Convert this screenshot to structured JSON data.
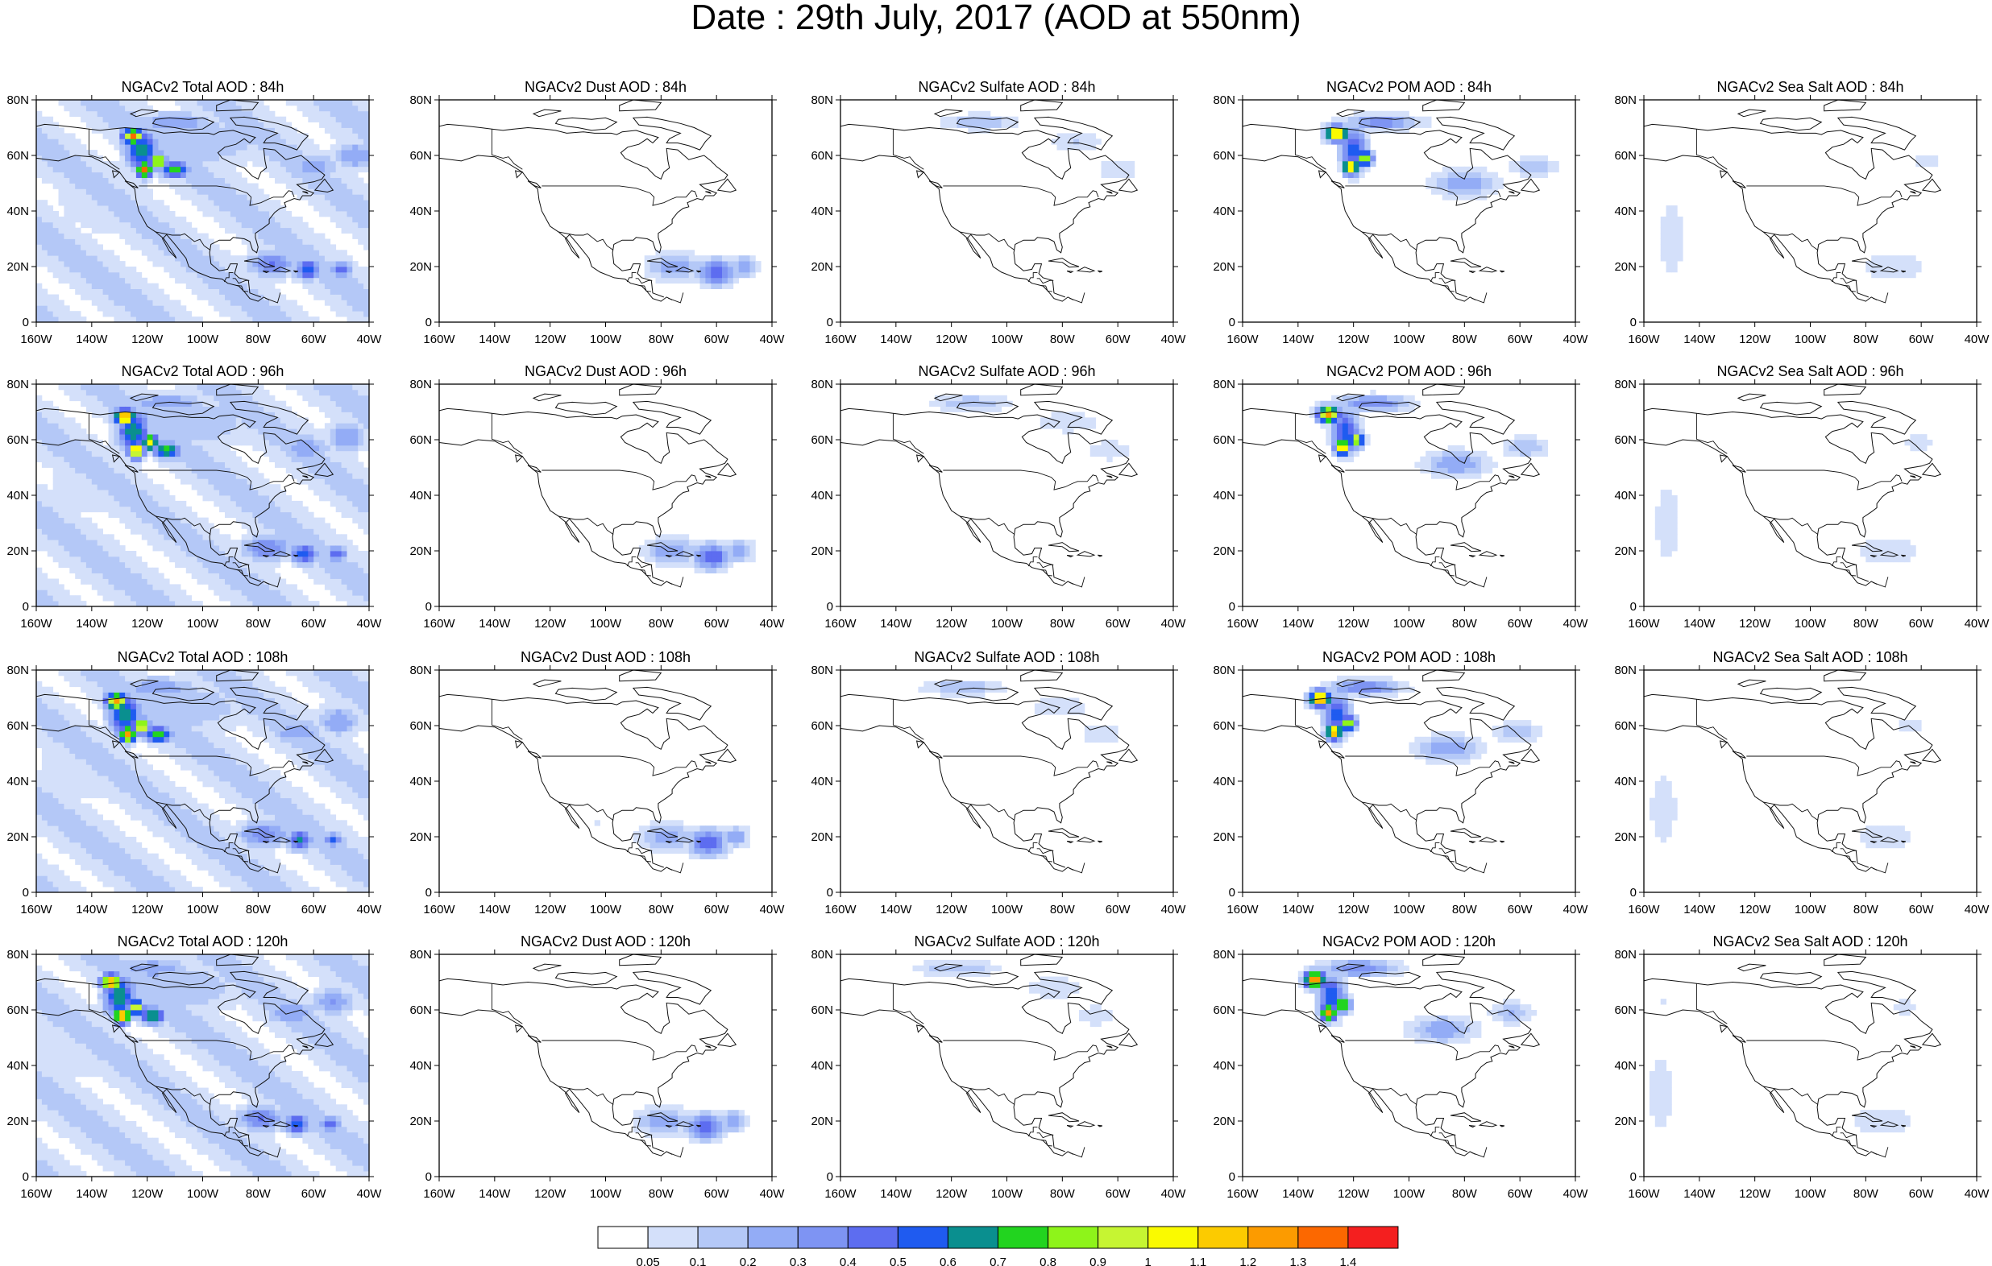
{
  "title": "Date : 29th July, 2017 (AOD at 550nm)",
  "panels": [
    {
      "title": "NGACv2 Total AOD : 84h",
      "species": "total",
      "hour": 84
    },
    {
      "title": "NGACv2 Dust AOD : 84h",
      "species": "dust",
      "hour": 84
    },
    {
      "title": "NGACv2 Sulfate AOD : 84h",
      "species": "sulfate",
      "hour": 84
    },
    {
      "title": "NGACv2 POM AOD : 84h",
      "species": "pom",
      "hour": 84
    },
    {
      "title": "NGACv2 Sea Salt AOD : 84h",
      "species": "seasalt",
      "hour": 84
    },
    {
      "title": "NGACv2 Total AOD : 96h",
      "species": "total",
      "hour": 96
    },
    {
      "title": "NGACv2 Dust AOD : 96h",
      "species": "dust",
      "hour": 96
    },
    {
      "title": "NGACv2 Sulfate AOD : 96h",
      "species": "sulfate",
      "hour": 96
    },
    {
      "title": "NGACv2 POM AOD : 96h",
      "species": "pom",
      "hour": 96
    },
    {
      "title": "NGACv2 Sea Salt AOD : 96h",
      "species": "seasalt",
      "hour": 96
    },
    {
      "title": "NGACv2 Total AOD : 108h",
      "species": "total",
      "hour": 108
    },
    {
      "title": "NGACv2 Dust AOD : 108h",
      "species": "dust",
      "hour": 108
    },
    {
      "title": "NGACv2 Sulfate AOD : 108h",
      "species": "sulfate",
      "hour": 108
    },
    {
      "title": "NGACv2 POM AOD : 108h",
      "species": "pom",
      "hour": 108
    },
    {
      "title": "NGACv2 Sea Salt AOD : 108h",
      "species": "seasalt",
      "hour": 108
    },
    {
      "title": "NGACv2 Total AOD : 120h",
      "species": "total",
      "hour": 120
    },
    {
      "title": "NGACv2 Dust AOD : 120h",
      "species": "dust",
      "hour": 120
    },
    {
      "title": "NGACv2 Sulfate AOD : 120h",
      "species": "sulfate",
      "hour": 120
    },
    {
      "title": "NGACv2 POM AOD : 120h",
      "species": "pom",
      "hour": 120
    },
    {
      "title": "NGACv2 Sea Salt  AOD : 120h",
      "species": "seasalt",
      "hour": 120
    }
  ],
  "axes": {
    "lon_ticks": [
      "160W",
      "140W",
      "120W",
      "100W",
      "80W",
      "60W",
      "40W"
    ],
    "lon_values": [
      -160,
      -140,
      -120,
      -100,
      -80,
      -60,
      -40
    ],
    "lat_ticks": [
      "0",
      "20N",
      "40N",
      "60N",
      "80N"
    ],
    "lat_values": [
      0,
      20,
      40,
      60,
      80
    ],
    "lon_range": [
      -160,
      -40
    ],
    "lat_range": [
      0,
      80
    ]
  },
  "colorbar": {
    "labels": [
      "0.05",
      "0.1",
      "0.2",
      "0.3",
      "0.4",
      "0.5",
      "0.6",
      "0.7",
      "0.8",
      "0.9",
      "1",
      "1.1",
      "1.2",
      "1.3",
      "1.4"
    ],
    "colors": [
      "#ffffff",
      "#d4e0fa",
      "#b4c8f7",
      "#93acf6",
      "#7e94f3",
      "#5d6df0",
      "#1f5bf0",
      "#0a8f8f",
      "#22d41f",
      "#8ef41a",
      "#c6f532",
      "#fafa00",
      "#fccb00",
      "#fc9b00",
      "#fc6800",
      "#f41f1f"
    ]
  }
}
